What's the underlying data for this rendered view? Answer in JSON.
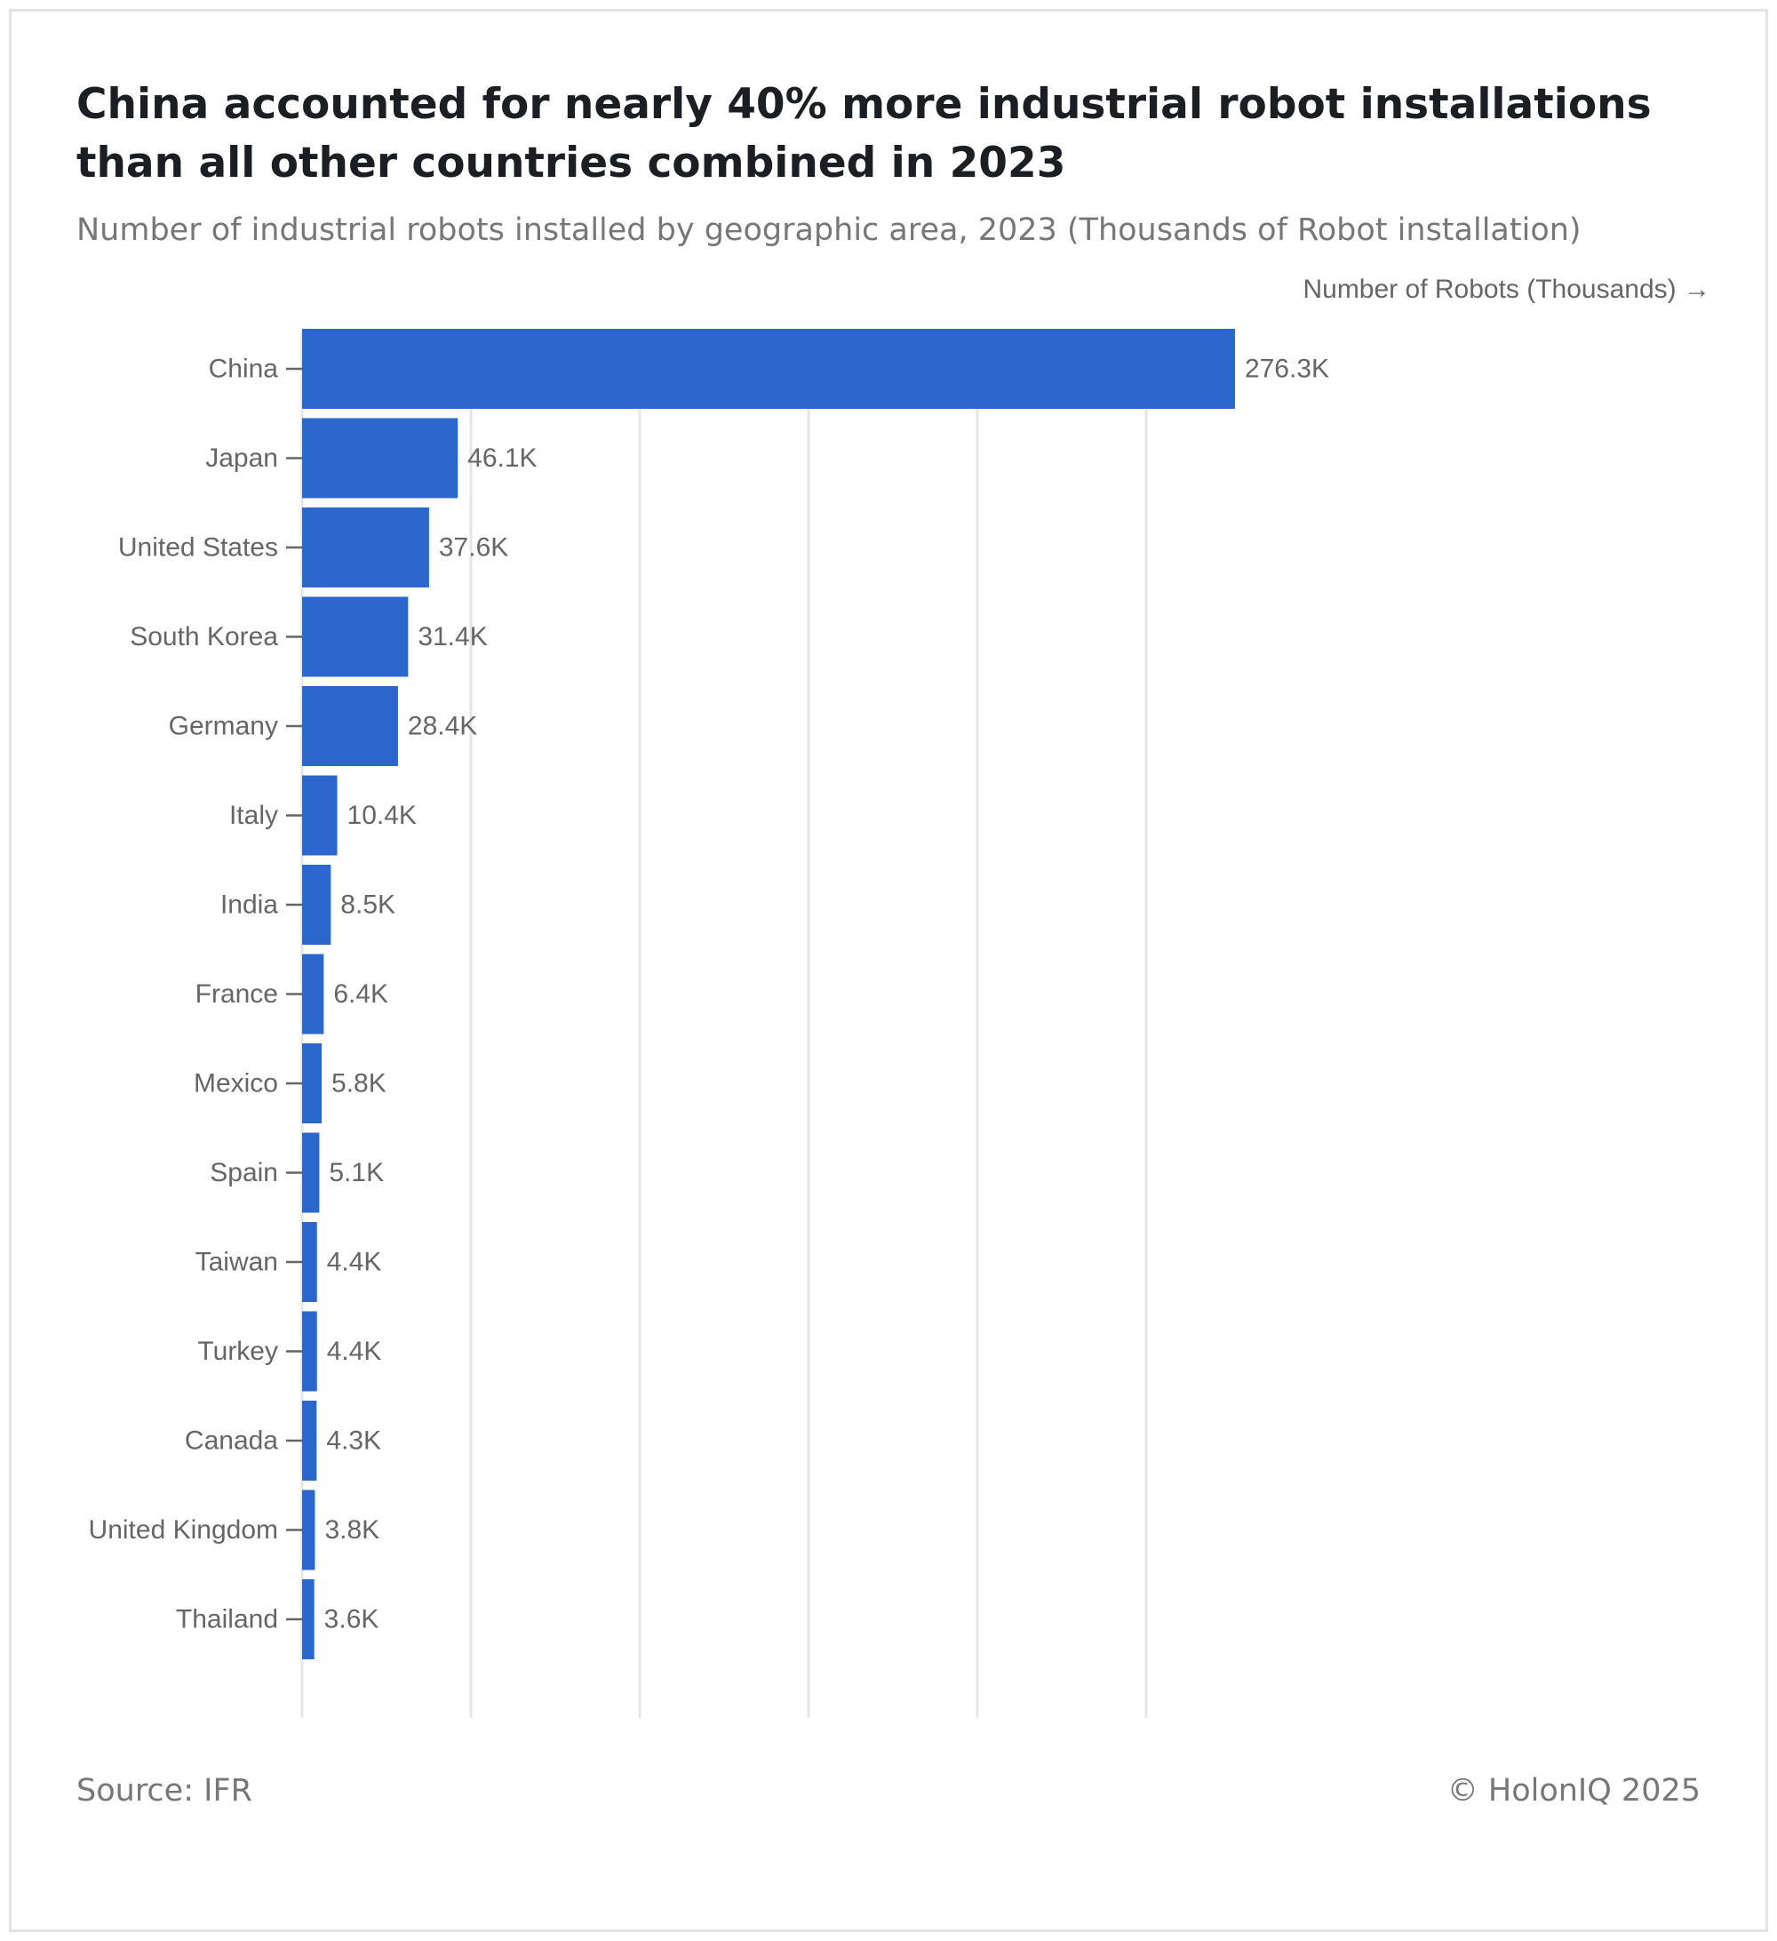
{
  "header": {
    "title": "China accounted for nearly 40% more industrial robot installations than all other countries combined in 2023",
    "subtitle": "Number of industrial robots installed by geographic area, 2023 (Thousands of Robot installation)"
  },
  "footer": {
    "source": "Source: IFR",
    "copyright": "© HolonIQ 2025"
  },
  "colors": {
    "bar": "#2a66cc",
    "grid": "#e6e6e6",
    "text": "#666666"
  },
  "chart_data": {
    "type": "bar",
    "orientation": "horizontal",
    "title": "China accounted for nearly 40% more industrial robot installations than all other countries combined in 2023",
    "subtitle": "Number of industrial robots installed by geographic area, 2023 (Thousands of Robot installation)",
    "xlabel": "Number of Robots (Thousands) →",
    "ylabel": "",
    "xlim": [
      0,
      300
    ],
    "grid": true,
    "categories": [
      "China",
      "Japan",
      "United States",
      "South Korea",
      "Germany",
      "Italy",
      "India",
      "France",
      "Mexico",
      "Spain",
      "Taiwan",
      "Turkey",
      "Canada",
      "United Kingdom",
      "Thailand"
    ],
    "values": [
      276.3,
      46.1,
      37.6,
      31.4,
      28.4,
      10.4,
      8.5,
      6.4,
      5.8,
      5.1,
      4.4,
      4.4,
      4.3,
      3.8,
      3.6
    ],
    "value_labels": [
      "276.3K",
      "46.1K",
      "37.6K",
      "31.4K",
      "28.4K",
      "10.4K",
      "8.5K",
      "6.4K",
      "5.8K",
      "5.1K",
      "4.4K",
      "4.4K",
      "4.3K",
      "3.8K",
      "3.6K"
    ]
  }
}
